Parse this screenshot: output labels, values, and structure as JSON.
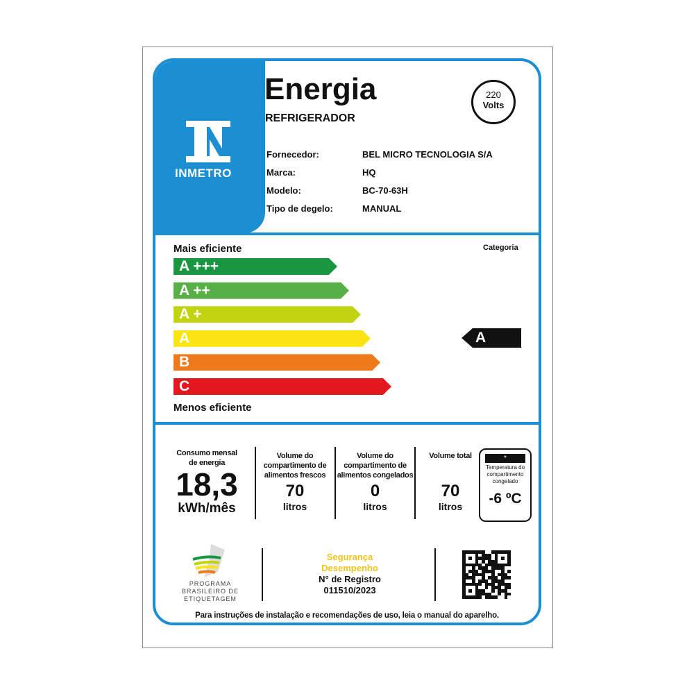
{
  "header": {
    "title": "Energia",
    "subtitle": "REFRIGERADOR",
    "voltage_value": "220",
    "voltage_unit": "Volts",
    "logo_text": "INMETRO"
  },
  "info": [
    {
      "label": "Fornecedor:",
      "value": "BEL MICRO TECNOLOGIA S/A"
    },
    {
      "label": "Marca:",
      "value": "HQ"
    },
    {
      "label": "Modelo:",
      "value": "BC-70-63H"
    },
    {
      "label": "Tipo de degelo:",
      "value": "MANUAL"
    }
  ],
  "scale": {
    "top_label": "Mais eficiente",
    "bottom_label": "Menos eficiente",
    "category_label": "Categoria",
    "category_value": "A",
    "classes": [
      {
        "label": "A +++",
        "color": "#1a9641"
      },
      {
        "label": "A ++",
        "color": "#56b046"
      },
      {
        "label": "A +",
        "color": "#c2d312"
      },
      {
        "label": "A",
        "color": "#fce314"
      },
      {
        "label": "B",
        "color": "#ee7a1c"
      },
      {
        "label": "C",
        "color": "#e3171e"
      }
    ]
  },
  "specs": {
    "consumption": {
      "label": "Consumo mensal de energia",
      "value": "18,3",
      "unit": "kWh/mês"
    },
    "fresh": {
      "label": "Volume do compartimento de alimentos frescos",
      "value": "70",
      "unit": "litros"
    },
    "frozen": {
      "label": "Volume do compartimento de alimentos congelados",
      "value": "0",
      "unit": "litros"
    },
    "total": {
      "label": "Volume total",
      "value": "70",
      "unit": "litros"
    },
    "temperature": {
      "label": "Temperatura do compartimento congelado",
      "value": "-6 ºC",
      "stars": "*"
    }
  },
  "footer": {
    "program": "PROGRAMA BRASILEIRO DE ETIQUETAGEM",
    "safety1": "Segurança",
    "safety2": "Desempenho",
    "registry_label": "N° de Registro",
    "registry_value": "011510/2023",
    "note": "Para instruções de instalação e recomendações de uso, leia o manual do aparelho."
  },
  "colors": {
    "frame": "#1b8fd2",
    "safety": "#f0c419"
  }
}
